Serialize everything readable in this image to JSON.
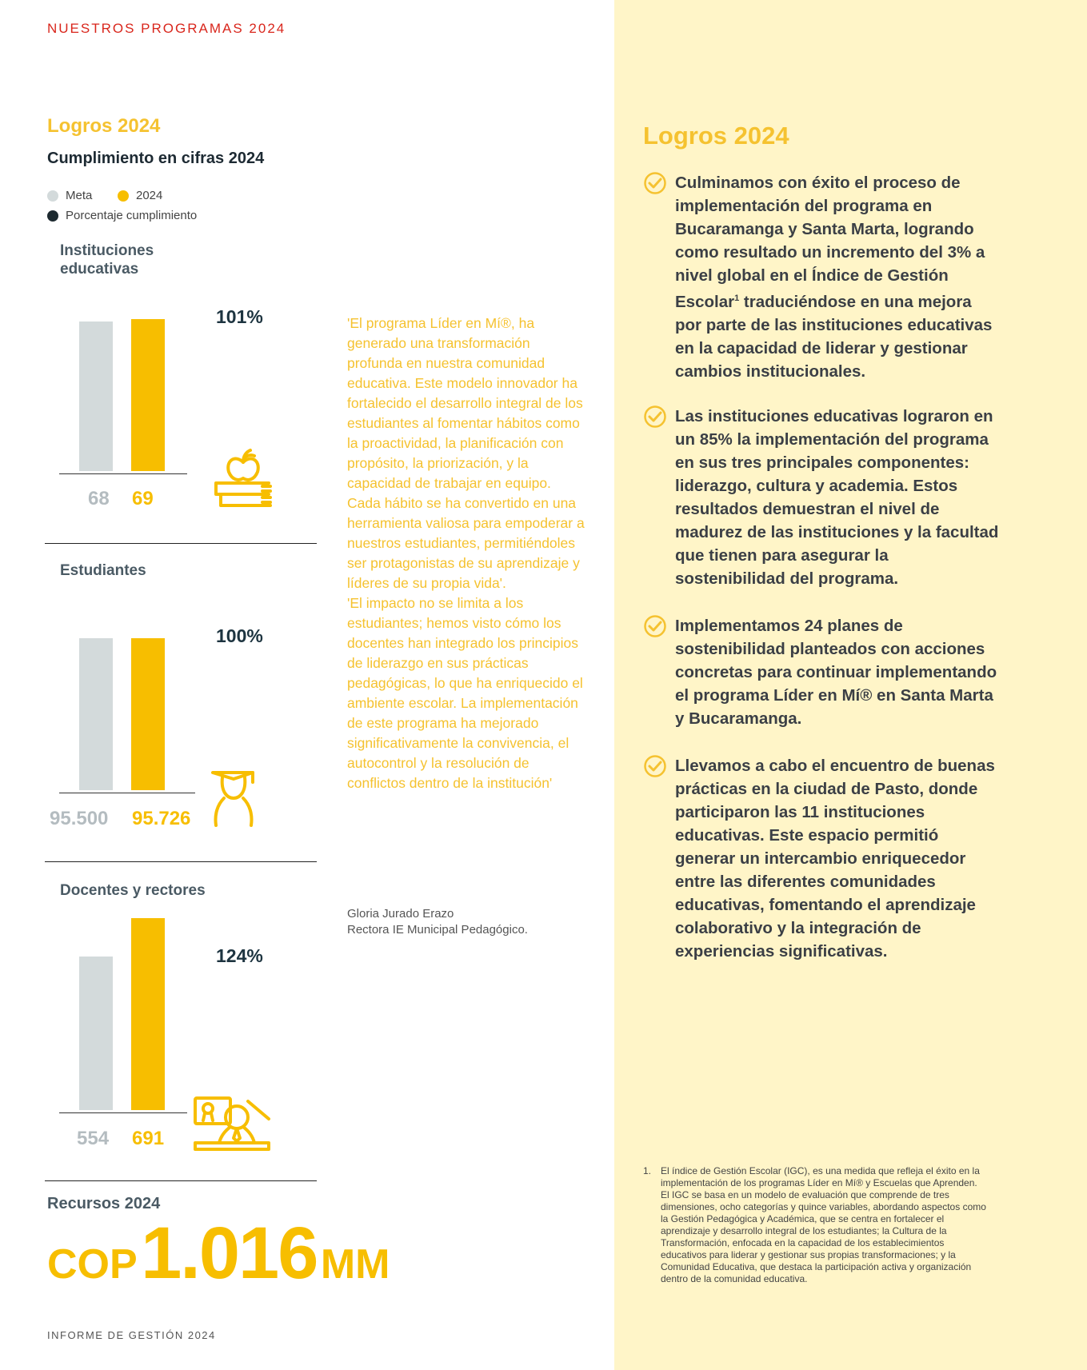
{
  "header": {
    "title": "NUESTROS PROGRAMAS 2024"
  },
  "footer": {
    "text": "INFORME DE GESTIÓN 2024"
  },
  "left": {
    "logros_title": "Logros 2024",
    "subtitle": "Cumplimiento en cifras 2024",
    "legend": [
      {
        "label": "Meta",
        "color": "#d3dadb"
      },
      {
        "label": "2024",
        "color": "#f7be00"
      },
      {
        "label": "Porcentaje cumplimiento",
        "color": "#1d2a30"
      }
    ]
  },
  "chart_data": [
    {
      "type": "bar",
      "title": "Instituciones educativas",
      "categories": [
        "Meta",
        "2024"
      ],
      "values": [
        68,
        69
      ],
      "value_labels": [
        "68",
        "69"
      ],
      "percentage": "101%",
      "icon": "apple-books-icon"
    },
    {
      "type": "bar",
      "title": "Estudiantes",
      "categories": [
        "Meta",
        "2024"
      ],
      "values": [
        95500,
        95726
      ],
      "value_labels": [
        "95.500",
        "95.726"
      ],
      "percentage": "100%",
      "icon": "graduate-student-icon"
    },
    {
      "type": "bar",
      "title": "Docentes y rectores",
      "categories": [
        "Meta",
        "2024"
      ],
      "values": [
        554,
        691
      ],
      "value_labels": [
        "554",
        "691"
      ],
      "percentage": "124%",
      "icon": "teacher-certificate-icon"
    }
  ],
  "quote": {
    "text": "'El programa  Líder en Mí®, ha generado una transformación profunda en nuestra comunidad educativa. Este modelo innovador ha fortalecido el desarrollo integral de los estudiantes al fomentar hábitos como la proactividad, la planificación con propósito, la priorización, y la capacidad de trabajar en equipo. Cada hábito se ha convertido en una herramienta valiosa para empoderar a nuestros estudiantes, permitiéndoles ser protagonistas de su aprendizaje y líderes de su propia vida'.\n'El impacto no se limita a los estudiantes; hemos visto cómo los docentes han integrado los principios de liderazgo en sus prácticas pedagógicas, lo que ha enriquecido el ambiente escolar. La implementación de este programa ha mejorado significativamente la convivencia, el autocontrol y la resolución de conflictos dentro de la institución'",
    "author": "Gloria Jurado Erazo",
    "role": "Rectora IE Municipal Pedagógico."
  },
  "recursos": {
    "label": "Recursos 2024",
    "currency": "COP",
    "amount": "1.016",
    "unit": "MM"
  },
  "right": {
    "title": "Logros 2024",
    "items": [
      {
        "text": "Culminamos con éxito el proceso de implementación del programa en Bucaramanga y Santa Marta, logrando como resultado un incremento del 3% a nivel global en el Índice de Gestión Escolar",
        "sup": "1",
        "text_after": " traduciéndose en una mejora por parte de las instituciones educativas en la capacidad de liderar y gestionar cambios institucionales."
      },
      {
        "text": "Las instituciones educativas lograron en un 85% la implementación del programa en sus tres principales componentes: liderazgo, cultura y academia. Estos resultados demuestran el nivel de madurez de las instituciones y la facultad que tienen para asegurar la sostenibilidad del programa."
      },
      {
        "text": " Implementamos 24 planes de sostenibilidad planteados con acciones concretas para continuar implementando el programa Líder en Mí® en Santa Marta y Bucaramanga."
      },
      {
        "text": "Llevamos a cabo el encuentro de buenas prácticas en la ciudad de Pasto, donde participaron las 11 instituciones educativas. Este espacio permitió generar un intercambio enriquecedor entre las diferentes comunidades educativas, fomentando el aprendizaje colaborativo y la integración de experiencias significativas."
      }
    ],
    "footnote_num": "1.",
    "footnote": "El índice de Gestión Escolar (IGC), es una medida que refleja el éxito en la implementación de los programas Líder en Mí® y Escuelas que Aprenden. El IGC se basa en un modelo de evaluación que comprende de tres dimensiones, ocho categorías y quince variables, abordando aspectos como la Gestión Pedagógica y Académica, que se centra en fortalecer el aprendizaje y desarrollo integral de los estudiantes; la Cultura de la Transformación, enfocada en la capacidad de los establecimientos educativos para liderar y gestionar sus propias transformaciones; y la Comunidad Educativa, que destaca la participación activa y organización dentro de la comunidad educativa."
  }
}
